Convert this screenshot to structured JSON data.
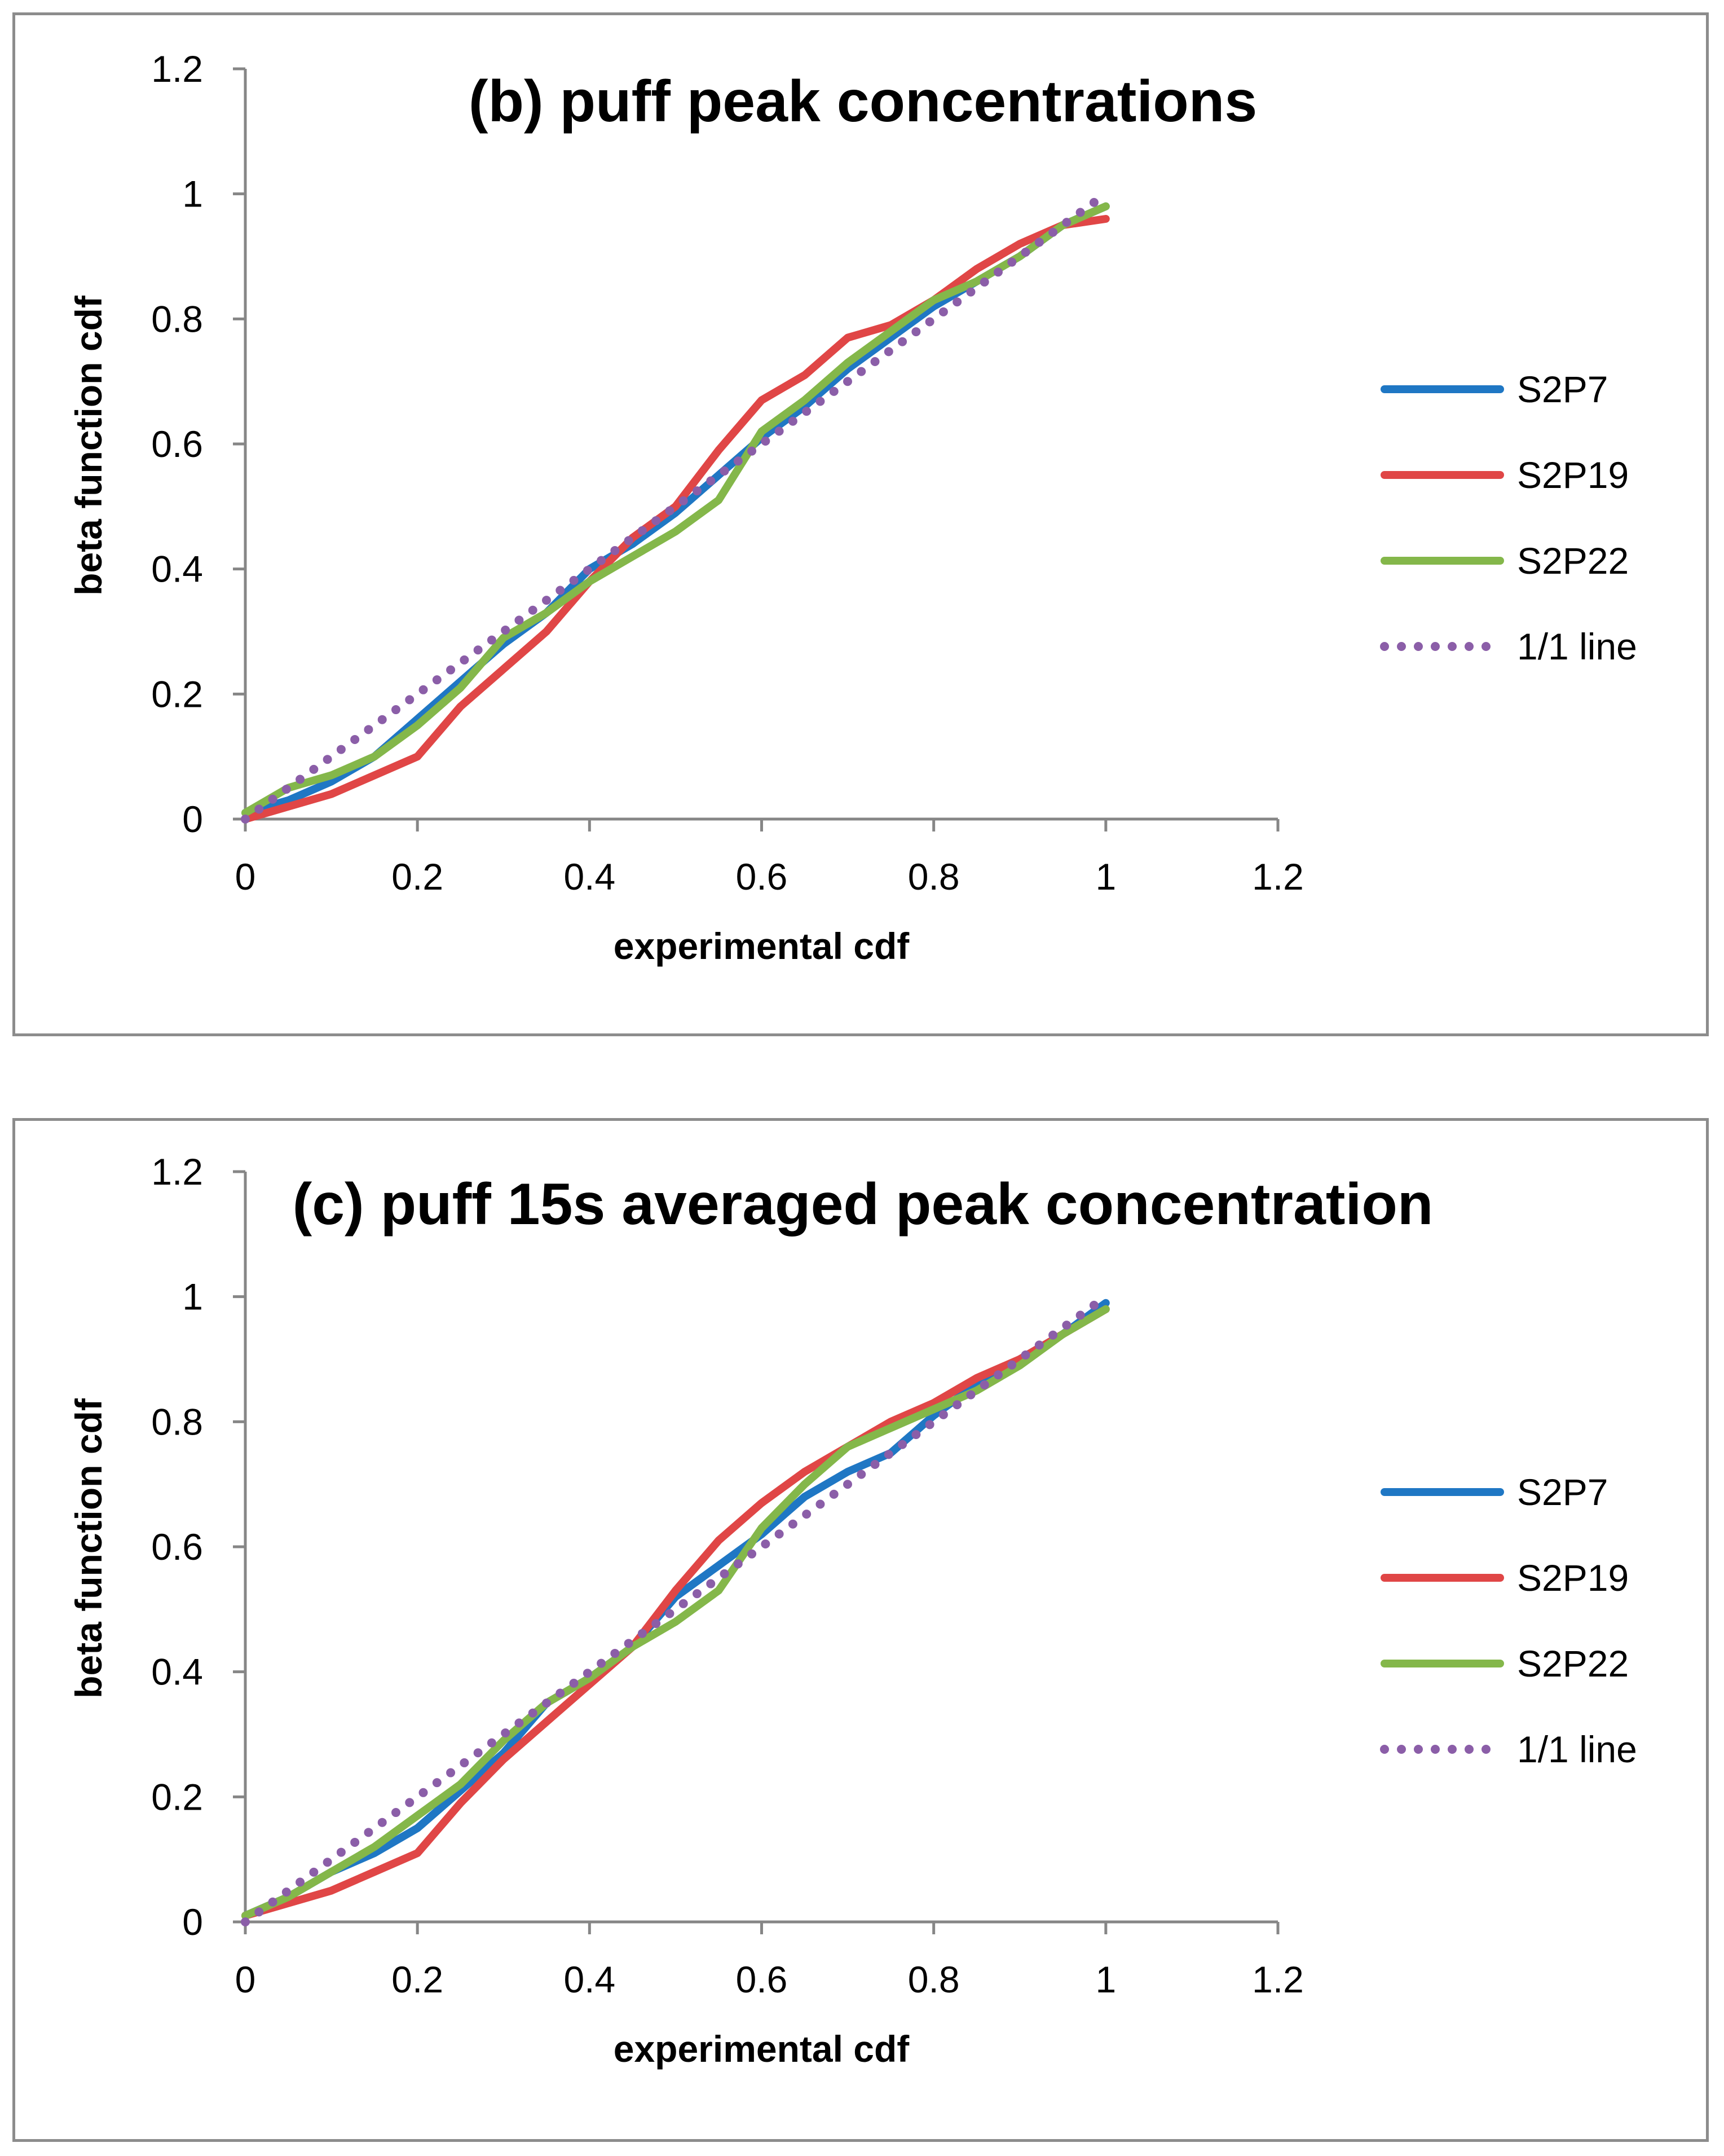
{
  "chart_data": [
    {
      "type": "line",
      "title": "(b) puff peak concentrations",
      "xlabel": "experimental cdf",
      "ylabel": "beta function cdf",
      "xlim": [
        0,
        1.2
      ],
      "ylim": [
        0,
        1.2
      ],
      "xticks": [
        "0",
        "0.2",
        "0.4",
        "0.6",
        "0.8",
        "1",
        "1.2"
      ],
      "yticks": [
        "0",
        "0.2",
        "0.4",
        "0.6",
        "0.8",
        "1",
        "1.2"
      ],
      "grid": false,
      "legend_position": "right",
      "series": [
        {
          "name": "S2P7",
          "color": "#1f77c4",
          "style": "solid",
          "x": [
            0.0,
            0.05,
            0.1,
            0.15,
            0.2,
            0.25,
            0.3,
            0.35,
            0.4,
            0.45,
            0.5,
            0.55,
            0.6,
            0.65,
            0.7,
            0.75,
            0.8,
            0.85,
            0.9,
            0.95,
            1.0
          ],
          "y": [
            0.01,
            0.03,
            0.06,
            0.1,
            0.16,
            0.22,
            0.28,
            0.33,
            0.4,
            0.44,
            0.49,
            0.55,
            0.61,
            0.66,
            0.72,
            0.77,
            0.82,
            0.86,
            0.9,
            0.95,
            0.98
          ]
        },
        {
          "name": "S2P19",
          "color": "#e04646",
          "style": "solid",
          "x": [
            0.0,
            0.05,
            0.1,
            0.15,
            0.2,
            0.25,
            0.3,
            0.35,
            0.4,
            0.45,
            0.5,
            0.55,
            0.6,
            0.65,
            0.7,
            0.75,
            0.8,
            0.85,
            0.9,
            0.95,
            1.0
          ],
          "y": [
            0.0,
            0.02,
            0.04,
            0.07,
            0.1,
            0.18,
            0.24,
            0.3,
            0.38,
            0.45,
            0.5,
            0.59,
            0.67,
            0.71,
            0.77,
            0.79,
            0.83,
            0.88,
            0.92,
            0.95,
            0.96
          ]
        },
        {
          "name": "S2P22",
          "color": "#84b74a",
          "style": "solid",
          "x": [
            0.0,
            0.05,
            0.1,
            0.15,
            0.2,
            0.25,
            0.3,
            0.35,
            0.4,
            0.45,
            0.5,
            0.55,
            0.6,
            0.65,
            0.7,
            0.75,
            0.8,
            0.85,
            0.9,
            0.95,
            1.0
          ],
          "y": [
            0.01,
            0.05,
            0.07,
            0.1,
            0.15,
            0.21,
            0.29,
            0.33,
            0.38,
            0.42,
            0.46,
            0.51,
            0.62,
            0.67,
            0.73,
            0.78,
            0.83,
            0.86,
            0.9,
            0.95,
            0.98
          ]
        },
        {
          "name": "1/1 line",
          "color": "#8b5ea8",
          "style": "dotted",
          "x": [
            0,
            1
          ],
          "y": [
            0,
            1
          ]
        }
      ]
    },
    {
      "type": "line",
      "title": "(c) puff 15s averaged peak concentration",
      "xlabel": "experimental cdf",
      "ylabel": "beta function cdf",
      "xlim": [
        0,
        1.2
      ],
      "ylim": [
        0,
        1.2
      ],
      "xticks": [
        "0",
        "0.2",
        "0.4",
        "0.6",
        "0.8",
        "1",
        "1.2"
      ],
      "yticks": [
        "0",
        "0.2",
        "0.4",
        "0.6",
        "0.8",
        "1",
        "1.2"
      ],
      "grid": false,
      "legend_position": "right",
      "series": [
        {
          "name": "S2P7",
          "color": "#1f77c4",
          "style": "solid",
          "x": [
            0.0,
            0.05,
            0.1,
            0.15,
            0.2,
            0.25,
            0.3,
            0.35,
            0.4,
            0.45,
            0.5,
            0.55,
            0.6,
            0.65,
            0.7,
            0.75,
            0.8,
            0.85,
            0.9,
            0.95,
            1.0
          ],
          "y": [
            0.01,
            0.04,
            0.08,
            0.11,
            0.15,
            0.21,
            0.27,
            0.35,
            0.39,
            0.44,
            0.52,
            0.57,
            0.62,
            0.68,
            0.72,
            0.75,
            0.81,
            0.86,
            0.9,
            0.94,
            0.99
          ]
        },
        {
          "name": "S2P19",
          "color": "#e04646",
          "style": "solid",
          "x": [
            0.0,
            0.05,
            0.1,
            0.15,
            0.2,
            0.25,
            0.3,
            0.35,
            0.4,
            0.45,
            0.5,
            0.55,
            0.6,
            0.65,
            0.7,
            0.75,
            0.8,
            0.85,
            0.9,
            0.95,
            1.0
          ],
          "y": [
            0.01,
            0.03,
            0.05,
            0.08,
            0.11,
            0.19,
            0.26,
            0.32,
            0.38,
            0.44,
            0.53,
            0.61,
            0.67,
            0.72,
            0.76,
            0.8,
            0.83,
            0.87,
            0.9,
            0.94,
            0.98
          ]
        },
        {
          "name": "S2P22",
          "color": "#84b74a",
          "style": "solid",
          "x": [
            0.0,
            0.05,
            0.1,
            0.15,
            0.2,
            0.25,
            0.3,
            0.35,
            0.4,
            0.45,
            0.5,
            0.55,
            0.6,
            0.65,
            0.7,
            0.75,
            0.8,
            0.85,
            0.9,
            0.95,
            1.0
          ],
          "y": [
            0.01,
            0.04,
            0.08,
            0.12,
            0.17,
            0.22,
            0.29,
            0.35,
            0.39,
            0.44,
            0.48,
            0.53,
            0.63,
            0.7,
            0.76,
            0.79,
            0.82,
            0.85,
            0.89,
            0.94,
            0.98
          ]
        },
        {
          "name": "1/1 line",
          "color": "#8b5ea8",
          "style": "dotted",
          "x": [
            0,
            1
          ],
          "y": [
            0,
            1
          ]
        }
      ]
    }
  ]
}
